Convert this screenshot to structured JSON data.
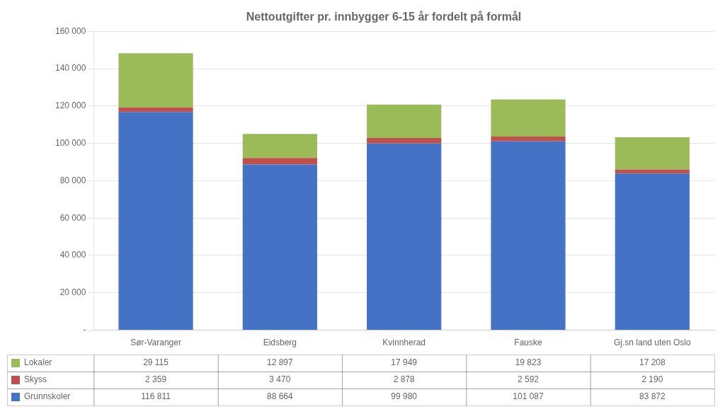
{
  "chart_data": {
    "type": "bar",
    "stacked": true,
    "grid": true,
    "title": "Nettoutgifter pr. innbygger 6-15 år fordelt på formål",
    "categories": [
      "Sør-Varanger",
      "Eidsberg",
      "Kvinnherad",
      "Fauske",
      "Gj.sn land uten Oslo"
    ],
    "series": [
      {
        "name": "Grunnskoler",
        "color": "#4472C4",
        "values": [
          116811,
          88664,
          99980,
          101087,
          83872
        ],
        "value_labels": [
          "116 811",
          "88 664",
          "99 980",
          "101 087",
          "83 872"
        ]
      },
      {
        "name": "Skyss",
        "color": "#C0504D",
        "values": [
          2359,
          3470,
          2878,
          2592,
          2190
        ],
        "value_labels": [
          "2 359",
          "3 470",
          "2 878",
          "2 592",
          "2 190"
        ]
      },
      {
        "name": "Lokaler",
        "color": "#9BBB59",
        "values": [
          29115,
          12897,
          17949,
          19823,
          17208
        ],
        "value_labels": [
          "29 115",
          "12 897",
          "17 949",
          "19 823",
          "17 208"
        ]
      }
    ],
    "ylim": [
      0,
      160000
    ],
    "yticks": [
      {
        "value": 0,
        "label": "-"
      },
      {
        "value": 20000,
        "label": "20 000"
      },
      {
        "value": 40000,
        "label": "40 000"
      },
      {
        "value": 60000,
        "label": "60 000"
      },
      {
        "value": 80000,
        "label": "80 000"
      },
      {
        "value": 100000,
        "label": "100 000"
      },
      {
        "value": 120000,
        "label": "120 000"
      },
      {
        "value": 140000,
        "label": "140 000"
      },
      {
        "value": 160000,
        "label": "160 000"
      }
    ]
  }
}
